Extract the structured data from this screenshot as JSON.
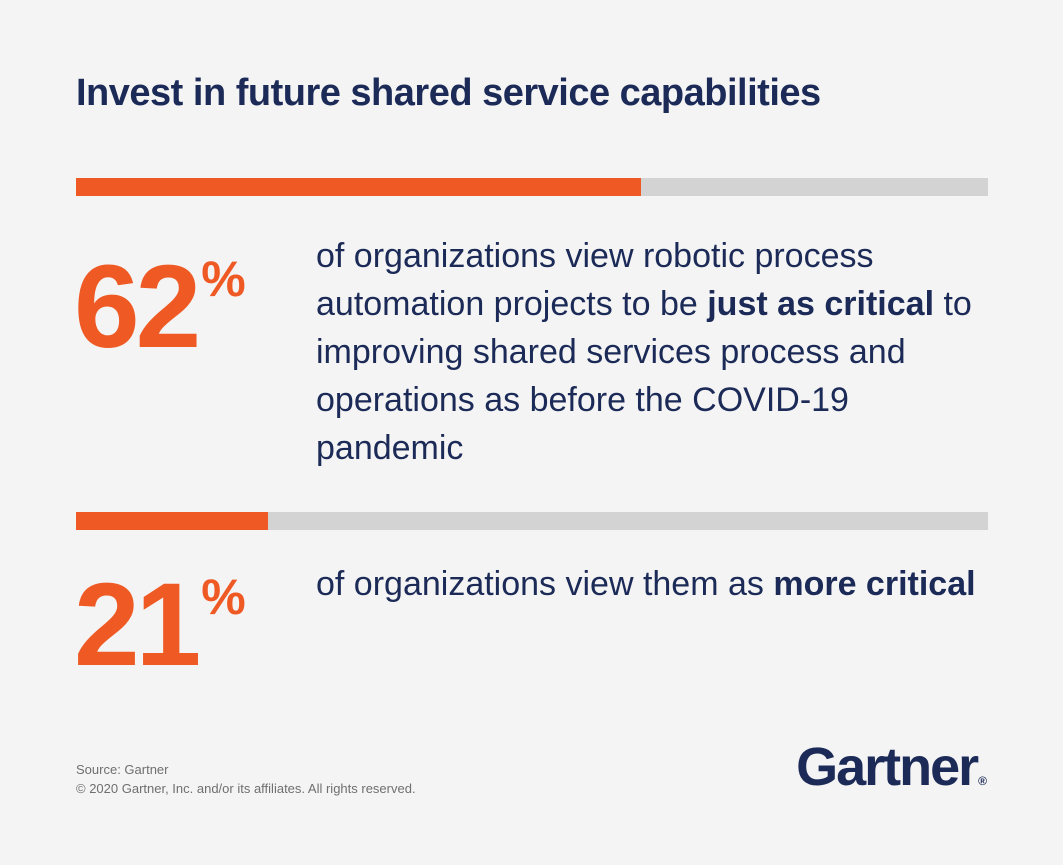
{
  "title": "Invest in future shared service capabilities",
  "chart_data": {
    "type": "bar",
    "title": "Invest in future shared service capabilities",
    "categories": [
      "just as critical",
      "more critical"
    ],
    "values": [
      62,
      21
    ],
    "unit": "%",
    "ylim": [
      0,
      100
    ],
    "bar_colors": {
      "fill": "#ef5a24",
      "track": "#d3d3d3"
    }
  },
  "stats": [
    {
      "number": "62",
      "symbol": "%",
      "text_pre": "of organizations view robotic process automation projects to be ",
      "text_bold": "just as critical",
      "text_post": " to improving shared services process and operations as before the COVID-19 pandemic"
    },
    {
      "number": "21",
      "symbol": "%",
      "text_pre": "of organizations view them as ",
      "text_bold": "more critical",
      "text_post": ""
    }
  ],
  "footer": {
    "source": "Source: Gartner",
    "copyright": "© 2020 Gartner, Inc. and/or its affiliates. All rights reserved."
  },
  "logo": {
    "text": "Gartner",
    "mark": "®"
  },
  "colors": {
    "accent": "#ef5a24",
    "navy": "#1b2a57",
    "track": "#d3d3d3",
    "background": "#f4f4f4"
  }
}
